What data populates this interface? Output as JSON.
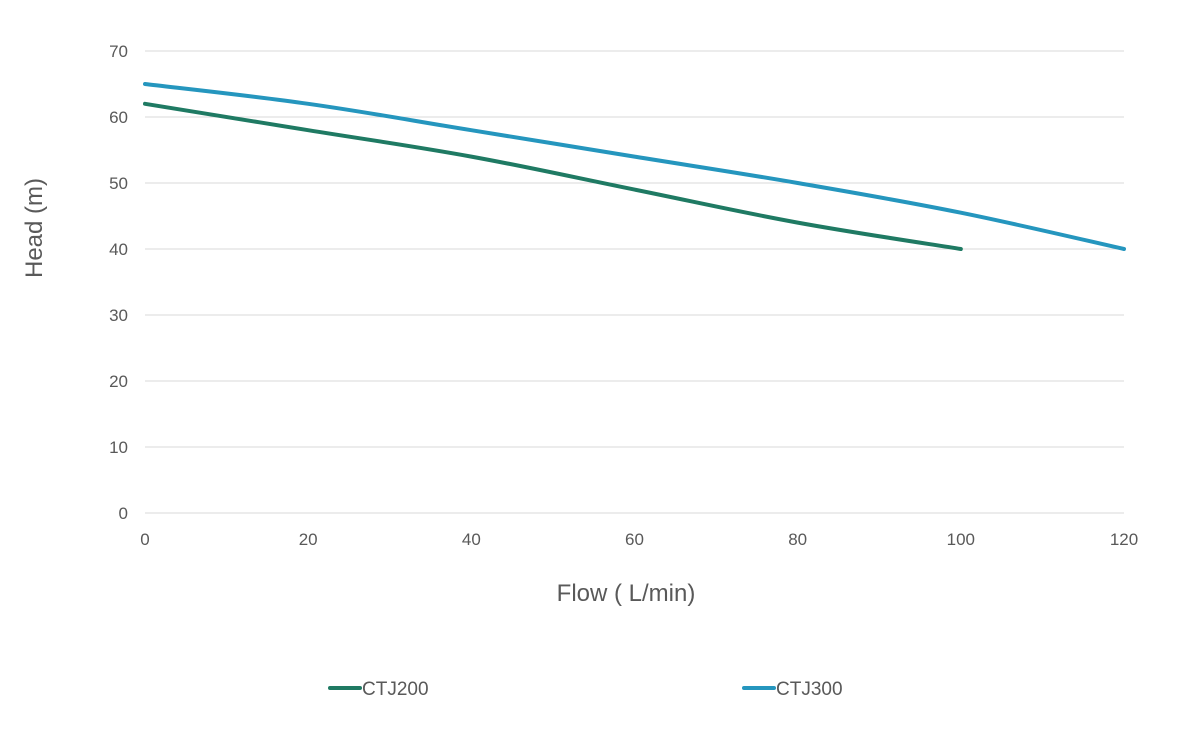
{
  "chart_data": {
    "type": "line",
    "title": "",
    "xlabel": "Flow ( L/min)",
    "ylabel": "Head (m)",
    "xlim": [
      0,
      120
    ],
    "ylim": [
      0,
      70
    ],
    "x_ticks": [
      0,
      20,
      40,
      60,
      80,
      100,
      120
    ],
    "y_ticks": [
      0,
      10,
      20,
      30,
      40,
      50,
      60,
      70
    ],
    "grid": "horizontal",
    "legend_position": "bottom",
    "series": [
      {
        "name": "CTJ200",
        "color": "#1f7a63",
        "x": [
          0,
          20,
          40,
          60,
          80,
          100
        ],
        "y": [
          62,
          58,
          54,
          49,
          44,
          40
        ]
      },
      {
        "name": "CTJ300",
        "color": "#2596be",
        "x": [
          0,
          20,
          40,
          60,
          80,
          100,
          120
        ],
        "y": [
          65,
          62,
          58,
          54,
          50,
          45.5,
          40
        ]
      }
    ]
  }
}
